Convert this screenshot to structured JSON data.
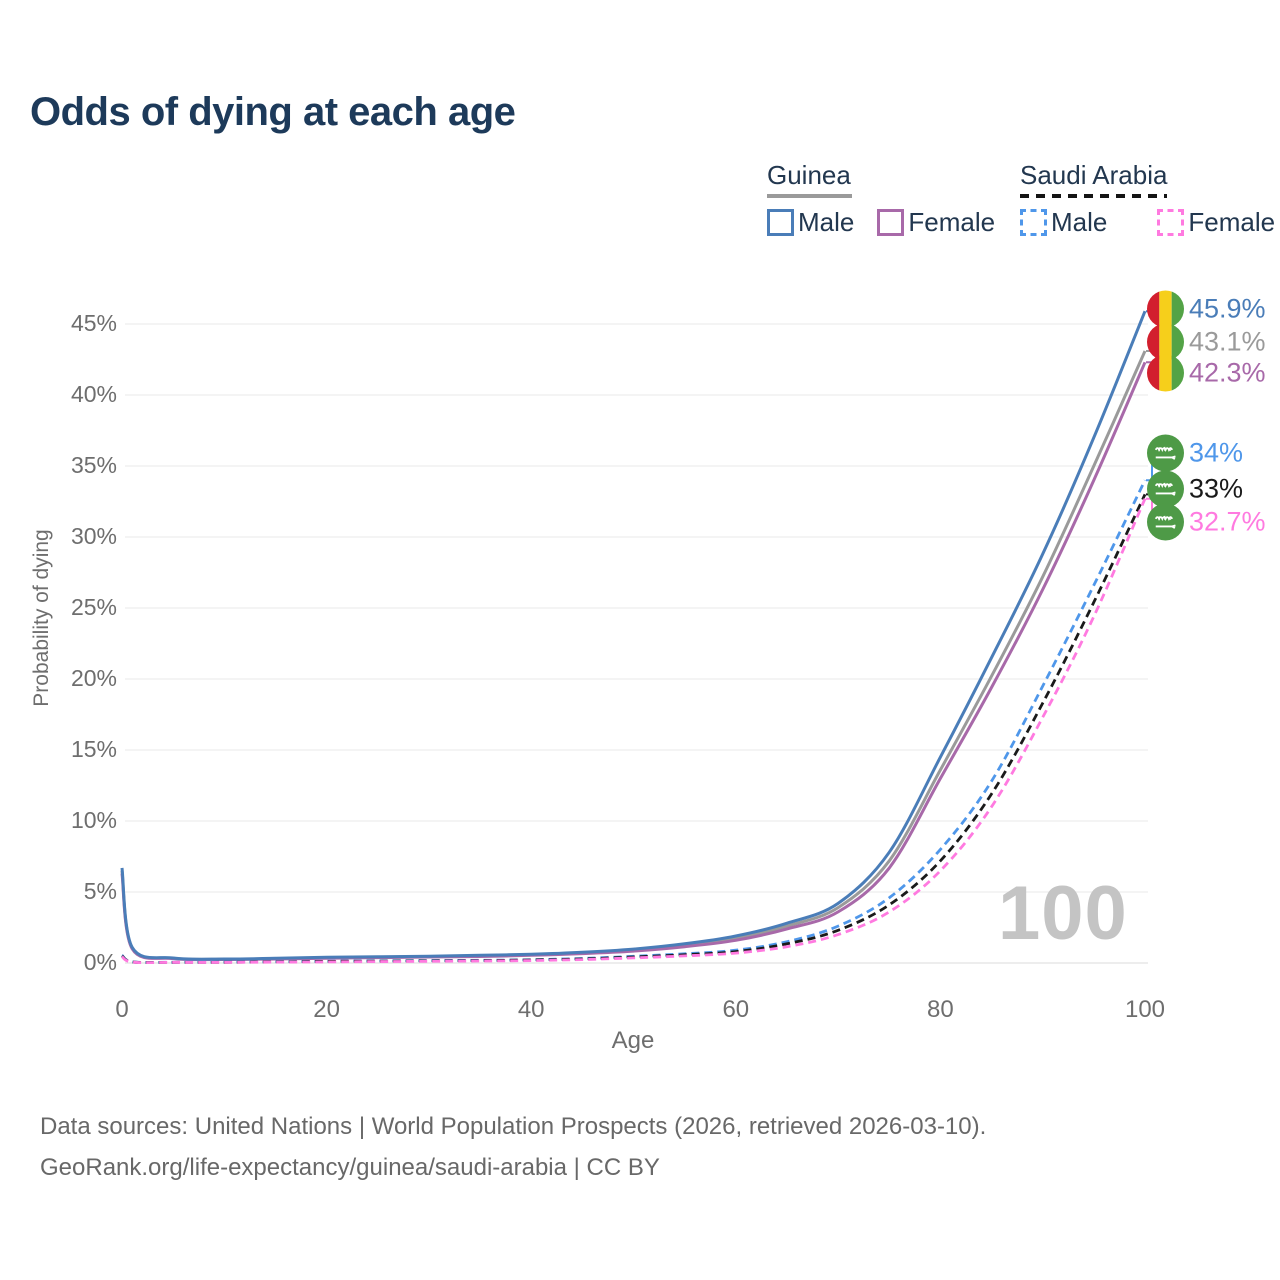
{
  "title": "Odds of dying at each age",
  "legend": {
    "guinea": {
      "label": "Guinea",
      "male": "Male",
      "female": "Female"
    },
    "saudi": {
      "label": "Saudi Arabia",
      "male": "Male",
      "female": "Female"
    }
  },
  "colors": {
    "guinea_male": "#4a7db8",
    "guinea_both": "#9a9a9a",
    "guinea_female": "#a869a9",
    "saudi_male": "#4f97ea",
    "saudi_both": "#1a1a1a",
    "saudi_female": "#ff7ae0",
    "title_text": "#1d3a5a",
    "axis_text": "#6e6e6e",
    "grid": "#ededed",
    "watermark": "#c4c4c4",
    "guinea_flag": [
      "#d21f2e",
      "#f6cf1b",
      "#53a346"
    ],
    "saudi_flag_green": "#4e9a47"
  },
  "chart_data": {
    "type": "line",
    "title": "Odds of dying at each age",
    "xlabel": "Age",
    "ylabel": "Probability of dying",
    "xlim": [
      0,
      100
    ],
    "ylim": [
      0,
      47
    ],
    "grid": true,
    "legend_position": "top-right",
    "xticks": [
      {
        "value": 0,
        "label": "0"
      },
      {
        "value": 20,
        "label": "20"
      },
      {
        "value": 40,
        "label": "40"
      },
      {
        "value": 60,
        "label": "60"
      },
      {
        "value": 80,
        "label": "80"
      },
      {
        "value": 100,
        "label": "100"
      }
    ],
    "yticks": [
      {
        "value": 0,
        "label": "0%"
      },
      {
        "value": 5,
        "label": "5%"
      },
      {
        "value": 10,
        "label": "10%"
      },
      {
        "value": 15,
        "label": "15%"
      },
      {
        "value": 20,
        "label": "20%"
      },
      {
        "value": 25,
        "label": "25%"
      },
      {
        "value": 30,
        "label": "30%"
      },
      {
        "value": 35,
        "label": "35%"
      },
      {
        "value": 40,
        "label": "40%"
      },
      {
        "value": 45,
        "label": "45%"
      }
    ],
    "ages": [
      0,
      1,
      5,
      10,
      15,
      20,
      25,
      30,
      35,
      40,
      45,
      50,
      55,
      60,
      65,
      70,
      75,
      80,
      85,
      90,
      95,
      100
    ],
    "series": [
      {
        "id": "gm",
        "name": "Guinea Male",
        "color": "#4a7db8",
        "dashed": false,
        "flag": "guinea",
        "end_label": "45.9%",
        "end_value": 45.9,
        "values": [
          6.7,
          1.1,
          0.35,
          0.28,
          0.33,
          0.4,
          0.44,
          0.48,
          0.54,
          0.62,
          0.76,
          0.98,
          1.35,
          1.9,
          2.8,
          4.2,
          7.8,
          14.5,
          21.5,
          28.8,
          37.0,
          45.9
        ]
      },
      {
        "id": "gt",
        "name": "Guinea Both sexes",
        "color": "#9a9a9a",
        "dashed": false,
        "flag": "guinea",
        "end_label": "43.1%",
        "end_value": 43.1,
        "values": [
          6.5,
          1.05,
          0.33,
          0.26,
          0.3,
          0.37,
          0.41,
          0.45,
          0.5,
          0.58,
          0.71,
          0.91,
          1.25,
          1.75,
          2.6,
          3.9,
          7.2,
          13.6,
          20.2,
          27.2,
          35.0,
          43.1
        ]
      },
      {
        "id": "gf",
        "name": "Guinea Female",
        "color": "#a869a9",
        "dashed": false,
        "flag": "guinea",
        "end_label": "42.3%",
        "end_value": 42.3,
        "values": [
          6.3,
          1.0,
          0.31,
          0.25,
          0.28,
          0.34,
          0.38,
          0.42,
          0.46,
          0.54,
          0.66,
          0.84,
          1.15,
          1.6,
          2.4,
          3.6,
          6.7,
          13.0,
          19.4,
          26.3,
          34.0,
          42.3
        ]
      },
      {
        "id": "sm",
        "name": "Saudi Arabia Male",
        "color": "#4f97ea",
        "dashed": true,
        "flag": "saudi",
        "end_label": "34%",
        "end_value": 34,
        "values": [
          0.55,
          0.08,
          0.05,
          0.06,
          0.09,
          0.13,
          0.15,
          0.17,
          0.19,
          0.23,
          0.32,
          0.47,
          0.65,
          0.9,
          1.5,
          2.6,
          4.6,
          8.0,
          12.8,
          19.5,
          26.6,
          34.0
        ]
      },
      {
        "id": "st",
        "name": "Saudi Arabia Both sexes",
        "color": "#1a1a1a",
        "dashed": true,
        "flag": "saudi",
        "end_label": "33%",
        "end_value": 33,
        "values": [
          0.5,
          0.07,
          0.045,
          0.05,
          0.08,
          0.11,
          0.13,
          0.15,
          0.17,
          0.21,
          0.28,
          0.42,
          0.58,
          0.8,
          1.35,
          2.3,
          4.1,
          7.2,
          11.9,
          18.3,
          25.4,
          33.0
        ]
      },
      {
        "id": "sf",
        "name": "Saudi Arabia Female",
        "color": "#ff7ae0",
        "dashed": true,
        "flag": "saudi",
        "end_label": "32.7%",
        "end_value": 32.7,
        "values": [
          0.45,
          0.06,
          0.04,
          0.045,
          0.06,
          0.08,
          0.1,
          0.12,
          0.14,
          0.17,
          0.24,
          0.36,
          0.5,
          0.7,
          1.15,
          2.0,
          3.6,
          6.5,
          11.0,
          17.3,
          24.4,
          32.7
        ]
      }
    ],
    "watermark": "100"
  },
  "footer": {
    "line1": "Data sources: United Nations | World Population Prospects (2026, retrieved 2026-03-10).",
    "line2": "GeoRank.org/life-expectancy/guinea/saudi-arabia | CC BY"
  }
}
